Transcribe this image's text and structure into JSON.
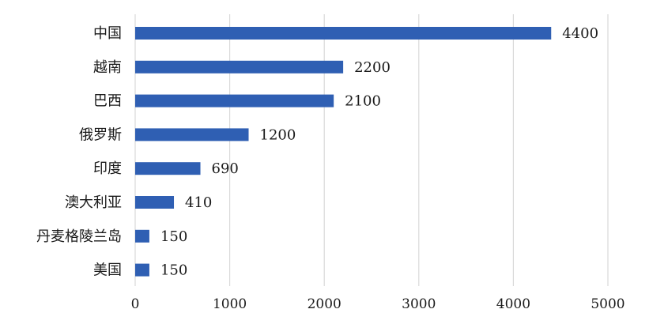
{
  "chart_data": {
    "type": "bar",
    "orientation": "horizontal",
    "categories": [
      "中国",
      "越南",
      "巴西",
      "俄罗斯",
      "印度",
      "澳大利亚",
      "丹麦格陵兰岛",
      "美国"
    ],
    "values": [
      4400,
      2200,
      2100,
      1200,
      690,
      410,
      150,
      150
    ],
    "data_labels": [
      "4400",
      "2200",
      "2100",
      "1200",
      "690",
      "410",
      "150",
      "150"
    ],
    "title": "",
    "xlabel": "",
    "ylabel": "",
    "xlim": [
      0,
      5000
    ],
    "x_ticks": [
      0,
      1000,
      2000,
      3000,
      4000,
      5000
    ],
    "x_tick_labels": [
      "0",
      "1000",
      "2000",
      "3000",
      "4000",
      "5000"
    ],
    "grid": "vertical",
    "legend": "none",
    "bar_color": "#2f5fb3"
  }
}
